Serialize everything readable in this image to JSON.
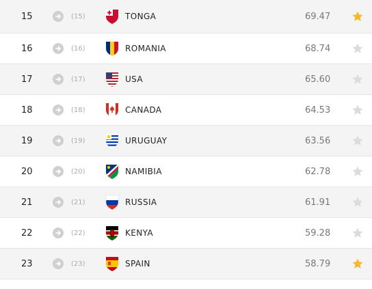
{
  "rankings": [
    {
      "position": "15",
      "previous": "(15)",
      "name": "TONGA",
      "points": "69.47",
      "flag": "tonga-flag-icon",
      "starred": true
    },
    {
      "position": "16",
      "previous": "(16)",
      "name": "ROMANIA",
      "points": "68.74",
      "flag": "romania-flag-icon",
      "starred": false
    },
    {
      "position": "17",
      "previous": "(17)",
      "name": "USA",
      "points": "65.60",
      "flag": "usa-flag-icon",
      "starred": false
    },
    {
      "position": "18",
      "previous": "(18)",
      "name": "CANADA",
      "points": "64.53",
      "flag": "canada-flag-icon",
      "starred": false
    },
    {
      "position": "19",
      "previous": "(19)",
      "name": "URUGUAY",
      "points": "63.56",
      "flag": "uruguay-flag-icon",
      "starred": false
    },
    {
      "position": "20",
      "previous": "(20)",
      "name": "NAMIBIA",
      "points": "62.78",
      "flag": "namibia-flag-icon",
      "starred": false
    },
    {
      "position": "21",
      "previous": "(21)",
      "name": "RUSSIA",
      "points": "61.91",
      "flag": "russia-flag-icon",
      "starred": false
    },
    {
      "position": "22",
      "previous": "(22)",
      "name": "KENYA",
      "points": "59.28",
      "flag": "kenya-flag-icon",
      "starred": false
    },
    {
      "position": "23",
      "previous": "(23)",
      "name": "SPAIN",
      "points": "58.79",
      "flag": "spain-flag-icon",
      "starred": true
    }
  ],
  "colors": {
    "star_active": "#f5b82e",
    "star_inactive": "#dcdcdc",
    "row_alt": "#f4f4f4",
    "movement_icon": "#d0d0d0"
  }
}
